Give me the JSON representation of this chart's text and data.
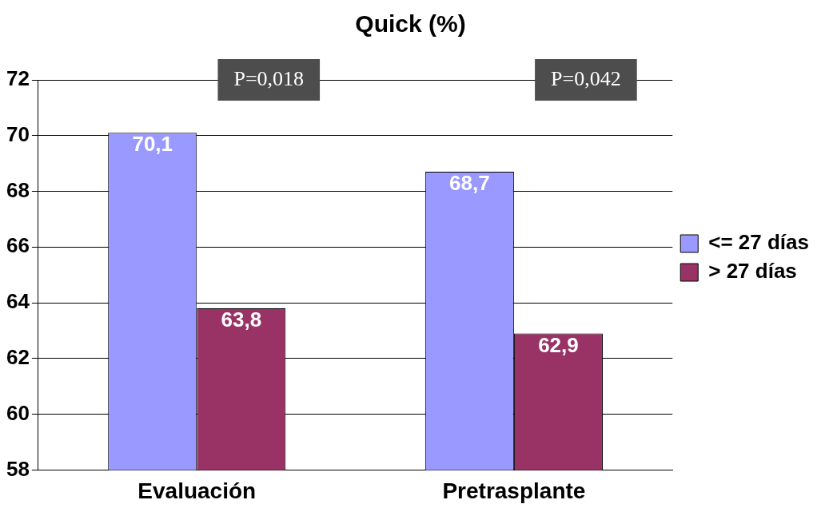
{
  "chart_data": {
    "type": "bar",
    "title": "Quick (%)",
    "categories": [
      "Evaluación",
      "Pretrasplante"
    ],
    "series": [
      {
        "name": "<= 27 días",
        "color": "#9999ff",
        "values": [
          70.1,
          68.7
        ],
        "value_labels": [
          "70,1",
          "68,7"
        ]
      },
      {
        "name": "> 27 días",
        "color": "#993366",
        "values": [
          63.8,
          62.9
        ],
        "value_labels": [
          "63,8",
          "62,9"
        ]
      }
    ],
    "ylim": [
      58,
      72
    ],
    "yticks": [
      58,
      60,
      62,
      64,
      66,
      68,
      70,
      72
    ],
    "grid": "y",
    "legend": "right",
    "annotations": [
      "P=0,018",
      "P=0,042"
    ]
  }
}
